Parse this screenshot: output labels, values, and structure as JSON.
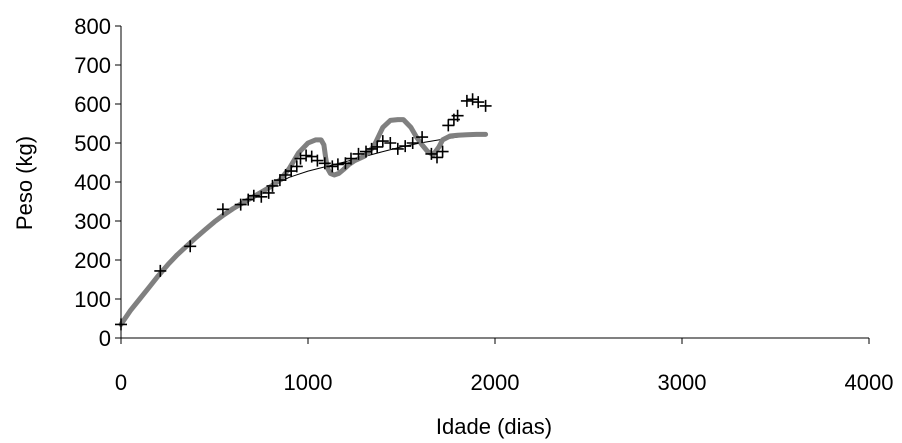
{
  "chart_data": {
    "type": "scatter",
    "title": "",
    "xlabel": "Idade (dias)",
    "ylabel": "Peso (kg)",
    "xlim": [
      0,
      4000
    ],
    "ylim": [
      0,
      800
    ],
    "x_ticks": [
      0,
      1000,
      2000,
      3000,
      4000
    ],
    "y_ticks": [
      0,
      100,
      200,
      300,
      400,
      500,
      600,
      700,
      800
    ],
    "grid": false,
    "legend": "none",
    "series": [
      {
        "type": "scatter",
        "marker": "plus",
        "color": "#000000",
        "points": [
          [
            0,
            35
          ],
          [
            210,
            172
          ],
          [
            370,
            235
          ],
          [
            545,
            330
          ],
          [
            640,
            342
          ],
          [
            680,
            355
          ],
          [
            710,
            365
          ],
          [
            750,
            362
          ],
          [
            790,
            372
          ],
          [
            810,
            390
          ],
          [
            850,
            405
          ],
          [
            880,
            418
          ],
          [
            910,
            428
          ],
          [
            940,
            440
          ],
          [
            960,
            460
          ],
          [
            990,
            468
          ],
          [
            1020,
            465
          ],
          [
            1050,
            455
          ],
          [
            1090,
            448
          ],
          [
            1130,
            440
          ],
          [
            1160,
            445
          ],
          [
            1200,
            448
          ],
          [
            1230,
            460
          ],
          [
            1270,
            472
          ],
          [
            1310,
            478
          ],
          [
            1340,
            485
          ],
          [
            1370,
            490
          ],
          [
            1400,
            505
          ],
          [
            1440,
            500
          ],
          [
            1480,
            485
          ],
          [
            1520,
            492
          ],
          [
            1560,
            500
          ],
          [
            1610,
            515
          ],
          [
            1660,
            472
          ],
          [
            1690,
            463
          ],
          [
            1720,
            478
          ],
          [
            1750,
            545
          ],
          [
            1780,
            560
          ],
          [
            1800,
            570
          ],
          [
            1850,
            608
          ],
          [
            1880,
            612
          ],
          [
            1910,
            605
          ],
          [
            1950,
            595
          ]
        ]
      },
      {
        "type": "line",
        "style": "thin",
        "color": "#000000",
        "points": [
          [
            0,
            35
          ],
          [
            100,
            100
          ],
          [
            200,
            160
          ],
          [
            300,
            210
          ],
          [
            400,
            255
          ],
          [
            500,
            298
          ],
          [
            600,
            330
          ],
          [
            700,
            360
          ],
          [
            800,
            388
          ],
          [
            900,
            412
          ],
          [
            1000,
            428
          ],
          [
            1100,
            440
          ],
          [
            1200,
            452
          ],
          [
            1300,
            465
          ],
          [
            1400,
            478
          ],
          [
            1500,
            490
          ],
          [
            1600,
            500
          ],
          [
            1700,
            508
          ],
          [
            1800,
            515
          ],
          [
            1900,
            520
          ],
          [
            1950,
            522
          ]
        ]
      },
      {
        "type": "line",
        "style": "thick",
        "color": "#808080",
        "points": [
          [
            0,
            35
          ],
          [
            50,
            70
          ],
          [
            100,
            100
          ],
          [
            150,
            130
          ],
          [
            200,
            160
          ],
          [
            250,
            188
          ],
          [
            300,
            213
          ],
          [
            350,
            235
          ],
          [
            400,
            257
          ],
          [
            450,
            278
          ],
          [
            500,
            298
          ],
          [
            550,
            316
          ],
          [
            600,
            332
          ],
          [
            650,
            346
          ],
          [
            700,
            360
          ],
          [
            750,
            374
          ],
          [
            800,
            388
          ],
          [
            850,
            405
          ],
          [
            900,
            435
          ],
          [
            950,
            475
          ],
          [
            1000,
            500
          ],
          [
            1040,
            508
          ],
          [
            1070,
            508
          ],
          [
            1085,
            495
          ],
          [
            1095,
            460
          ],
          [
            1105,
            435
          ],
          [
            1120,
            422
          ],
          [
            1140,
            418
          ],
          [
            1165,
            422
          ],
          [
            1190,
            432
          ],
          [
            1220,
            445
          ],
          [
            1250,
            455
          ],
          [
            1300,
            466
          ],
          [
            1350,
            490
          ],
          [
            1380,
            520
          ],
          [
            1400,
            540
          ],
          [
            1440,
            558
          ],
          [
            1480,
            560
          ],
          [
            1510,
            560
          ],
          [
            1550,
            540
          ],
          [
            1580,
            515
          ],
          [
            1610,
            495
          ],
          [
            1640,
            478
          ],
          [
            1670,
            470
          ],
          [
            1700,
            490
          ],
          [
            1720,
            508
          ],
          [
            1760,
            518
          ],
          [
            1800,
            520
          ],
          [
            1850,
            521
          ],
          [
            1900,
            522
          ],
          [
            1950,
            522
          ]
        ]
      }
    ]
  }
}
